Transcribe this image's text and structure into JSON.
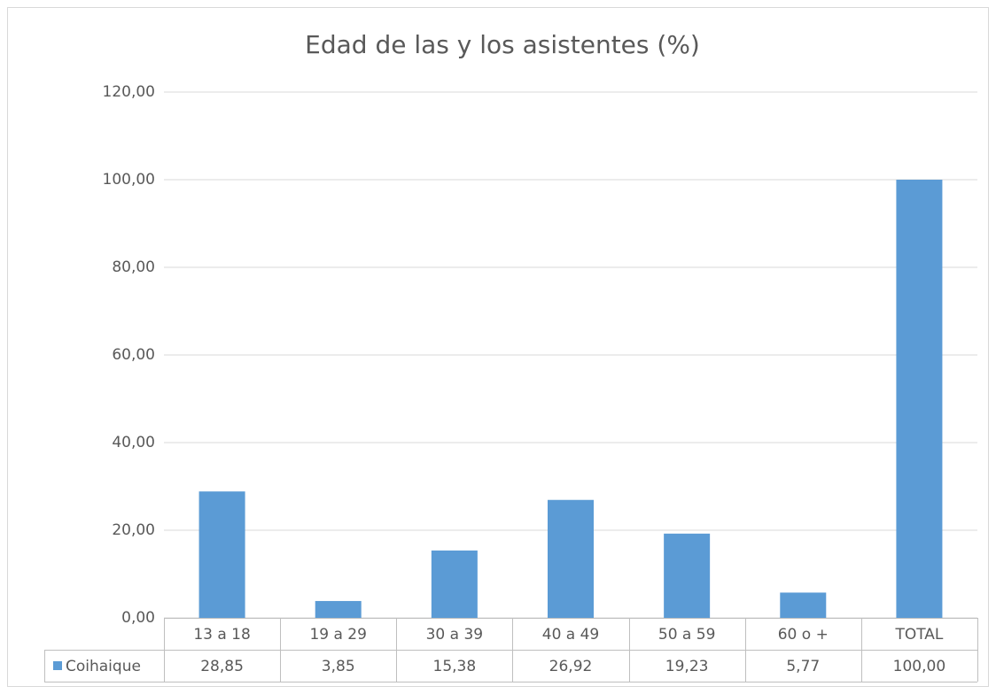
{
  "chart_data": {
    "type": "bar",
    "title": "Edad de las y los asistentes (%)",
    "categories": [
      "13 a 18",
      "19 a 29",
      "30 a 39",
      "40 a 49",
      "50 a 59",
      "60 o +",
      "TOTAL"
    ],
    "series": [
      {
        "name": "Coihaique",
        "color": "#5b9bd5",
        "values": [
          28.85,
          3.85,
          15.38,
          26.92,
          19.23,
          5.77,
          100
        ],
        "value_labels": [
          "28,85",
          "3,85",
          "15,38",
          "26,92",
          "19,23",
          "5,77",
          "100,00"
        ]
      }
    ],
    "ylim": [
      0,
      120
    ],
    "yticks": [
      {
        "value": 0,
        "label": "0,00"
      },
      {
        "value": 20,
        "label": "20,00"
      },
      {
        "value": 40,
        "label": "40,00"
      },
      {
        "value": 60,
        "label": "60,00"
      },
      {
        "value": 80,
        "label": "80,00"
      },
      {
        "value": 100,
        "label": "100,00"
      },
      {
        "value": 120,
        "label": "120,00"
      }
    ],
    "grid": true,
    "legend": "table"
  }
}
